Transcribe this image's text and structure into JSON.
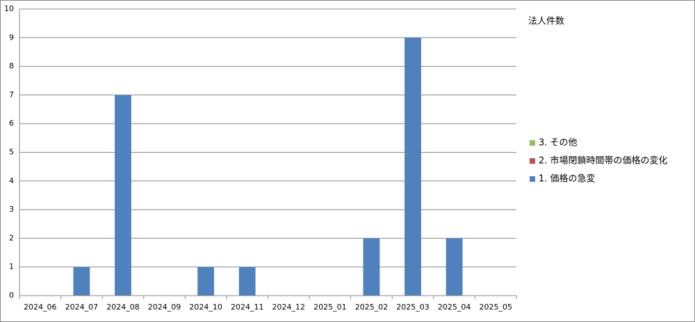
{
  "chart_data": {
    "type": "stacked_bar",
    "title": "法人件数",
    "categories": [
      "2024_06",
      "2024_07",
      "2024_08",
      "2024_09",
      "2024_10",
      "2024_11",
      "2024_12",
      "2025_01",
      "2025_02",
      "2025_03",
      "2025_04",
      "2025_05"
    ],
    "series": [
      {
        "name": "1. 価格の急変",
        "color": "#4f81bd",
        "values": [
          0,
          1,
          7,
          0,
          1,
          1,
          0,
          0,
          2,
          9,
          2,
          0
        ]
      },
      {
        "name": "2. 市場閉鎖時間帯の価格の変化",
        "color": "#c0504d",
        "values": [
          0,
          0,
          0,
          0,
          0,
          0,
          0,
          0,
          0,
          0,
          0,
          0
        ]
      },
      {
        "name": "3. その他",
        "color": "#9bbb59",
        "values": [
          0,
          0,
          0,
          0,
          0,
          0,
          0,
          0,
          0,
          0,
          0,
          0
        ]
      }
    ],
    "ylim": [
      0,
      10
    ],
    "yticks": [
      0,
      1,
      2,
      3,
      4,
      5,
      6,
      7,
      8,
      9,
      10
    ],
    "grid": true,
    "legend": "right"
  }
}
